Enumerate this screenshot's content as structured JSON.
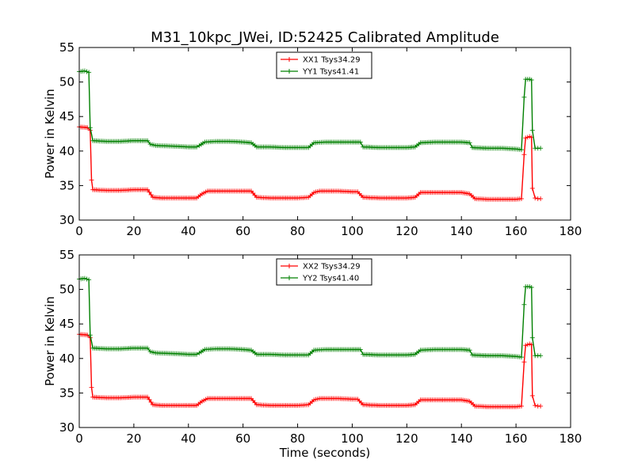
{
  "figure": {
    "title": "M31_10kpc_JWei, ID:52425 Calibrated Amplitude"
  },
  "chart_data": [
    {
      "type": "line",
      "title": "M31_10kpc_JWei, ID:52425 Calibrated Amplitude",
      "xlabel": "",
      "ylabel": "Power in Kelvin",
      "xlim": [
        0,
        180
      ],
      "ylim": [
        30,
        55
      ],
      "xticks": [
        0,
        20,
        40,
        60,
        80,
        100,
        120,
        140,
        160,
        180
      ],
      "yticks": [
        30,
        35,
        40,
        45,
        50,
        55
      ],
      "grid": false,
      "legend_position": "top-center",
      "series": [
        {
          "name": "XX1 Tsys34.29",
          "color": "#ff0000",
          "marker": "+",
          "points": [
            [
              0,
              43.5
            ],
            [
              3,
              43.4
            ],
            [
              4,
              43.0
            ],
            [
              4.5,
              35.8
            ],
            [
              5,
              34.4
            ],
            [
              10,
              34.3
            ],
            [
              15,
              34.3
            ],
            [
              20,
              34.4
            ],
            [
              25,
              34.4
            ],
            [
              27,
              33.3
            ],
            [
              30,
              33.2
            ],
            [
              35,
              33.2
            ],
            [
              40,
              33.2
            ],
            [
              43,
              33.2
            ],
            [
              45,
              33.8
            ],
            [
              47,
              34.2
            ],
            [
              50,
              34.2
            ],
            [
              55,
              34.2
            ],
            [
              60,
              34.2
            ],
            [
              63,
              34.2
            ],
            [
              65,
              33.3
            ],
            [
              70,
              33.2
            ],
            [
              75,
              33.2
            ],
            [
              80,
              33.2
            ],
            [
              84,
              33.3
            ],
            [
              86,
              34.0
            ],
            [
              88,
              34.2
            ],
            [
              95,
              34.2
            ],
            [
              100,
              34.1
            ],
            [
              102,
              34.1
            ],
            [
              104,
              33.3
            ],
            [
              110,
              33.2
            ],
            [
              115,
              33.2
            ],
            [
              120,
              33.2
            ],
            [
              123,
              33.3
            ],
            [
              125,
              34.0
            ],
            [
              130,
              34.0
            ],
            [
              135,
              34.0
            ],
            [
              140,
              34.0
            ],
            [
              143,
              33.8
            ],
            [
              145,
              33.1
            ],
            [
              150,
              33.0
            ],
            [
              155,
              33.0
            ],
            [
              160,
              33.0
            ],
            [
              162,
              33.1
            ],
            [
              163,
              39.5
            ],
            [
              163.5,
              41.9
            ],
            [
              165,
              42.1
            ],
            [
              165.7,
              42.0
            ],
            [
              166,
              34.6
            ],
            [
              167,
              33.2
            ],
            [
              168,
              33.1
            ],
            [
              169,
              33.1
            ]
          ]
        },
        {
          "name": "YY1 Tsys41.41",
          "color": "#008000",
          "marker": "+",
          "points": [
            [
              0,
              51.5
            ],
            [
              2,
              51.6
            ],
            [
              3.5,
              51.4
            ],
            [
              4,
              43.4
            ],
            [
              5,
              41.5
            ],
            [
              10,
              41.4
            ],
            [
              15,
              41.4
            ],
            [
              20,
              41.5
            ],
            [
              25,
              41.5
            ],
            [
              26,
              41.0
            ],
            [
              28,
              40.8
            ],
            [
              35,
              40.7
            ],
            [
              40,
              40.6
            ],
            [
              43,
              40.6
            ],
            [
              44,
              40.8
            ],
            [
              46,
              41.3
            ],
            [
              50,
              41.4
            ],
            [
              55,
              41.4
            ],
            [
              60,
              41.3
            ],
            [
              63,
              41.2
            ],
            [
              65,
              40.6
            ],
            [
              70,
              40.6
            ],
            [
              75,
              40.5
            ],
            [
              80,
              40.5
            ],
            [
              84,
              40.5
            ],
            [
              86,
              41.2
            ],
            [
              90,
              41.3
            ],
            [
              95,
              41.3
            ],
            [
              100,
              41.3
            ],
            [
              103,
              41.3
            ],
            [
              104,
              40.6
            ],
            [
              110,
              40.5
            ],
            [
              115,
              40.5
            ],
            [
              120,
              40.5
            ],
            [
              123,
              40.6
            ],
            [
              125,
              41.2
            ],
            [
              130,
              41.3
            ],
            [
              135,
              41.3
            ],
            [
              140,
              41.3
            ],
            [
              143,
              41.2
            ],
            [
              144,
              40.5
            ],
            [
              150,
              40.4
            ],
            [
              155,
              40.4
            ],
            [
              160,
              40.3
            ],
            [
              162,
              40.2
            ],
            [
              163,
              47.8
            ],
            [
              163.5,
              50.4
            ],
            [
              165,
              50.4
            ],
            [
              165.7,
              50.3
            ],
            [
              166,
              43.0
            ],
            [
              167,
              40.4
            ],
            [
              168,
              40.4
            ],
            [
              169,
              40.4
            ]
          ]
        }
      ]
    },
    {
      "type": "line",
      "title": "",
      "xlabel": "Time (seconds)",
      "ylabel": "Power in Kelvin",
      "xlim": [
        0,
        180
      ],
      "ylim": [
        30,
        55
      ],
      "xticks": [
        0,
        20,
        40,
        60,
        80,
        100,
        120,
        140,
        160,
        180
      ],
      "yticks": [
        30,
        35,
        40,
        45,
        50,
        55
      ],
      "grid": false,
      "legend_position": "top-center",
      "series": [
        {
          "name": "XX2 Tsys34.29",
          "color": "#ff0000",
          "marker": "+",
          "points": [
            [
              0,
              43.5
            ],
            [
              3,
              43.4
            ],
            [
              4,
              43.0
            ],
            [
              4.5,
              35.8
            ],
            [
              5,
              34.4
            ],
            [
              10,
              34.3
            ],
            [
              15,
              34.3
            ],
            [
              20,
              34.4
            ],
            [
              25,
              34.4
            ],
            [
              27,
              33.3
            ],
            [
              30,
              33.2
            ],
            [
              35,
              33.2
            ],
            [
              40,
              33.2
            ],
            [
              43,
              33.2
            ],
            [
              45,
              33.8
            ],
            [
              47,
              34.2
            ],
            [
              50,
              34.2
            ],
            [
              55,
              34.2
            ],
            [
              60,
              34.2
            ],
            [
              63,
              34.2
            ],
            [
              65,
              33.3
            ],
            [
              70,
              33.2
            ],
            [
              75,
              33.2
            ],
            [
              80,
              33.2
            ],
            [
              84,
              33.3
            ],
            [
              86,
              34.0
            ],
            [
              88,
              34.2
            ],
            [
              95,
              34.2
            ],
            [
              100,
              34.1
            ],
            [
              102,
              34.1
            ],
            [
              104,
              33.3
            ],
            [
              110,
              33.2
            ],
            [
              115,
              33.2
            ],
            [
              120,
              33.2
            ],
            [
              123,
              33.3
            ],
            [
              125,
              34.0
            ],
            [
              130,
              34.0
            ],
            [
              135,
              34.0
            ],
            [
              140,
              34.0
            ],
            [
              143,
              33.8
            ],
            [
              145,
              33.1
            ],
            [
              150,
              33.0
            ],
            [
              155,
              33.0
            ],
            [
              160,
              33.0
            ],
            [
              162,
              33.1
            ],
            [
              163,
              39.5
            ],
            [
              163.5,
              41.9
            ],
            [
              165,
              42.1
            ],
            [
              165.7,
              42.0
            ],
            [
              166,
              34.6
            ],
            [
              167,
              33.2
            ],
            [
              168,
              33.1
            ],
            [
              169,
              33.1
            ]
          ]
        },
        {
          "name": "YY2 Tsys41.40",
          "color": "#008000",
          "marker": "+",
          "points": [
            [
              0,
              51.5
            ],
            [
              2,
              51.6
            ],
            [
              3.5,
              51.4
            ],
            [
              4,
              43.4
            ],
            [
              5,
              41.5
            ],
            [
              10,
              41.4
            ],
            [
              15,
              41.4
            ],
            [
              20,
              41.5
            ],
            [
              25,
              41.5
            ],
            [
              26,
              41.0
            ],
            [
              28,
              40.8
            ],
            [
              35,
              40.7
            ],
            [
              40,
              40.6
            ],
            [
              43,
              40.6
            ],
            [
              44,
              40.8
            ],
            [
              46,
              41.3
            ],
            [
              50,
              41.4
            ],
            [
              55,
              41.4
            ],
            [
              60,
              41.3
            ],
            [
              63,
              41.2
            ],
            [
              65,
              40.6
            ],
            [
              70,
              40.6
            ],
            [
              75,
              40.5
            ],
            [
              80,
              40.5
            ],
            [
              84,
              40.5
            ],
            [
              86,
              41.2
            ],
            [
              90,
              41.3
            ],
            [
              95,
              41.3
            ],
            [
              100,
              41.3
            ],
            [
              103,
              41.3
            ],
            [
              104,
              40.6
            ],
            [
              110,
              40.5
            ],
            [
              115,
              40.5
            ],
            [
              120,
              40.5
            ],
            [
              123,
              40.6
            ],
            [
              125,
              41.2
            ],
            [
              130,
              41.3
            ],
            [
              135,
              41.3
            ],
            [
              140,
              41.3
            ],
            [
              143,
              41.2
            ],
            [
              144,
              40.5
            ],
            [
              150,
              40.4
            ],
            [
              155,
              40.4
            ],
            [
              160,
              40.3
            ],
            [
              162,
              40.2
            ],
            [
              163,
              47.8
            ],
            [
              163.5,
              50.4
            ],
            [
              165,
              50.4
            ],
            [
              165.7,
              50.3
            ],
            [
              166,
              43.0
            ],
            [
              167,
              40.4
            ],
            [
              168,
              40.4
            ],
            [
              169,
              40.4
            ]
          ]
        }
      ]
    }
  ]
}
